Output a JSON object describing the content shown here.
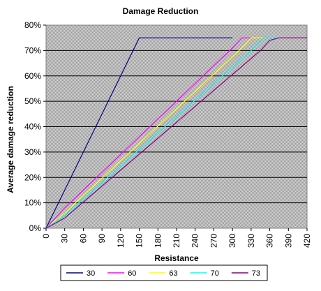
{
  "chart_data": {
    "type": "line",
    "title": "Damage Reduction",
    "xlabel": "Resistance",
    "ylabel": "Average damage reduction",
    "xlim": [
      0,
      420
    ],
    "ylim": [
      0,
      80
    ],
    "x_ticks": [
      "0",
      "30",
      "60",
      "90",
      "120",
      "150",
      "180",
      "210",
      "240",
      "270",
      "300",
      "330",
      "360",
      "390",
      "420"
    ],
    "y_ticks": [
      "0%",
      "10%",
      "20%",
      "30%",
      "40%",
      "50%",
      "60%",
      "70%",
      "80%"
    ],
    "grid": "horizontal",
    "plot_background": "patterned gray",
    "legend_position": "bottom",
    "series": [
      {
        "name": "30",
        "color": "#000080",
        "points": [
          [
            0,
            0
          ],
          [
            150,
            75
          ],
          [
            300,
            75
          ]
        ]
      },
      {
        "name": "60",
        "color": "#ff00ff",
        "points": [
          [
            0,
            0
          ],
          [
            30,
            8
          ],
          [
            300,
            71
          ],
          [
            315,
            75
          ],
          [
            330,
            75
          ]
        ]
      },
      {
        "name": "63",
        "color": "#ffff00",
        "points": [
          [
            0,
            0
          ],
          [
            30,
            6
          ],
          [
            315,
            71
          ],
          [
            330,
            75
          ],
          [
            350,
            75
          ]
        ]
      },
      {
        "name": "70",
        "color": "#00ffff",
        "points": [
          [
            0,
            0
          ],
          [
            30,
            5
          ],
          [
            330,
            70
          ],
          [
            350,
            75
          ],
          [
            370,
            75
          ]
        ]
      },
      {
        "name": "73",
        "color": "#800080",
        "points": [
          [
            0,
            0
          ],
          [
            30,
            4
          ],
          [
            345,
            70
          ],
          [
            360,
            74
          ],
          [
            375,
            75
          ],
          [
            420,
            75
          ]
        ]
      }
    ]
  }
}
